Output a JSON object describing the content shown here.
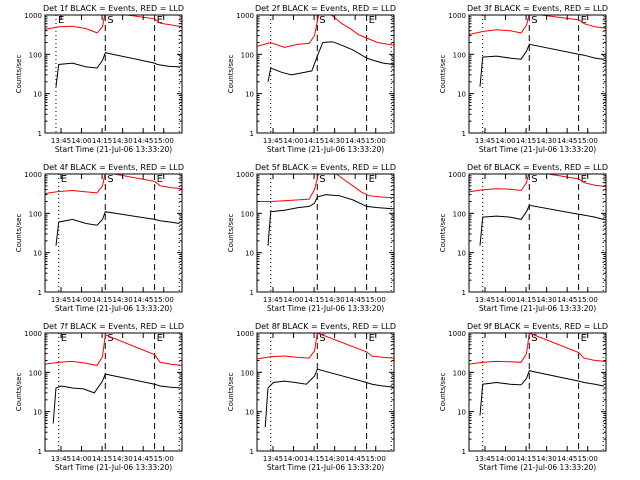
{
  "figure": {
    "ylabel": "Counts/sec",
    "xlabel": "Start Time (21-Jul-06 13:33:20)",
    "yticks": [
      "1",
      "10",
      "100",
      "1000"
    ],
    "xticks": [
      "13:45",
      "14:00",
      "14:15",
      "14:30",
      "14:45",
      "15:00"
    ],
    "colors": {
      "events": "#000000",
      "lld": "#ff0000",
      "axes": "#000000"
    }
  },
  "chart_data": [
    {
      "type": "line",
      "title": "Det 1f BLACK = Events, RED = LLD",
      "xlabel": "Start Time (21-Jul-06 13:33:20)",
      "ylabel": "Counts/sec",
      "ylim": [
        1,
        1000
      ],
      "yscale": "log",
      "x_unit": "minutes after 13:33:20",
      "markers": [
        {
          "label": "E",
          "style": "dotted",
          "x": 8
        },
        {
          "label": "S",
          "style": "dashed",
          "x": 44
        },
        {
          "label": "E",
          "style": "dashed",
          "x": 80
        },
        {
          "style": "dotted",
          "x": 98
        }
      ],
      "series": [
        {
          "name": "Events",
          "color": "#000000",
          "x": [
            8,
            10,
            20,
            30,
            38,
            42,
            44,
            80,
            82,
            90,
            98
          ],
          "y": [
            15,
            55,
            60,
            48,
            45,
            70,
            110,
            60,
            55,
            50,
            48
          ]
        },
        {
          "name": "LLD",
          "color": "#ff0000",
          "x": [
            0,
            10,
            20,
            30,
            38,
            42,
            44,
            80,
            84,
            92,
            100
          ],
          "y": [
            430,
            500,
            520,
            450,
            350,
            500,
            1200,
            800,
            620,
            560,
            500
          ]
        }
      ]
    },
    {
      "type": "line",
      "title": "Det 2f BLACK = Events, RED = LLD",
      "xlabel": "Start Time (21-Jul-06 13:33:20)",
      "ylabel": "Counts/sec",
      "ylim": [
        1,
        1000
      ],
      "yscale": "log",
      "x_unit": "minutes after 13:33:20",
      "markers": [
        {
          "style": "dotted",
          "x": 10
        },
        {
          "label": "S",
          "style": "dashed",
          "x": 44
        },
        {
          "label": "E",
          "style": "dashed",
          "x": 80
        },
        {
          "style": "dotted",
          "x": 98
        }
      ],
      "series": [
        {
          "name": "Events",
          "color": "#000000",
          "x": [
            8,
            10,
            18,
            25,
            35,
            40,
            44,
            48,
            55,
            62,
            70,
            80,
            85,
            92,
            100
          ],
          "y": [
            20,
            45,
            35,
            30,
            35,
            38,
            90,
            200,
            210,
            170,
            130,
            80,
            70,
            60,
            55
          ]
        },
        {
          "name": "LLD",
          "color": "#ff0000",
          "x": [
            0,
            10,
            20,
            30,
            38,
            42,
            46,
            50,
            56,
            62,
            68,
            74,
            80,
            88,
            100
          ],
          "y": [
            160,
            200,
            150,
            180,
            190,
            300,
            1500,
            1300,
            900,
            600,
            450,
            320,
            260,
            200,
            170
          ]
        }
      ]
    },
    {
      "type": "line",
      "title": "Det 3f BLACK = Events, RED = LLD",
      "xlabel": "Start Time (21-Jul-06 13:33:20)",
      "ylabel": "Counts/sec",
      "ylim": [
        1,
        1000
      ],
      "yscale": "log",
      "x_unit": "minutes after 13:33:20",
      "markers": [
        {
          "style": "dotted",
          "x": 10
        },
        {
          "label": "S",
          "style": "dashed",
          "x": 44
        },
        {
          "label": "E",
          "style": "dashed",
          "x": 80
        },
        {
          "style": "dotted",
          "x": 98
        }
      ],
      "series": [
        {
          "name": "Events",
          "color": "#000000",
          "x": [
            8,
            10,
            20,
            30,
            38,
            42,
            44,
            80,
            84,
            92,
            98
          ],
          "y": [
            15,
            85,
            90,
            80,
            75,
            120,
            180,
            100,
            95,
            80,
            75
          ]
        },
        {
          "name": "LLD",
          "color": "#ff0000",
          "x": [
            0,
            10,
            20,
            30,
            38,
            42,
            44,
            80,
            84,
            92,
            100
          ],
          "y": [
            320,
            380,
            420,
            400,
            350,
            550,
            1100,
            750,
            600,
            500,
            460
          ]
        }
      ]
    },
    {
      "type": "line",
      "title": "Det 4f BLACK = Events, RED = LLD",
      "xlabel": "Start Time (21-Jul-06 13:33:20)",
      "ylabel": "Counts/sec",
      "ylim": [
        1,
        1000
      ],
      "yscale": "log",
      "x_unit": "minutes after 13:33:20",
      "markers": [
        {
          "label": "E",
          "style": "dotted",
          "x": 10
        },
        {
          "label": "S",
          "style": "dashed",
          "x": 44
        },
        {
          "label": "E",
          "style": "dashed",
          "x": 80
        },
        {
          "style": "dotted",
          "x": 98
        }
      ],
      "series": [
        {
          "name": "Events",
          "color": "#000000",
          "x": [
            8,
            10,
            20,
            30,
            38,
            42,
            44,
            80,
            84,
            92,
            98
          ],
          "y": [
            15,
            60,
            70,
            55,
            50,
            70,
            110,
            70,
            65,
            60,
            55
          ]
        },
        {
          "name": "LLD",
          "color": "#ff0000",
          "x": [
            0,
            10,
            20,
            30,
            38,
            42,
            44,
            80,
            84,
            92,
            100
          ],
          "y": [
            320,
            360,
            380,
            350,
            330,
            500,
            1100,
            650,
            500,
            450,
            420
          ]
        }
      ]
    },
    {
      "type": "line",
      "title": "Det 5f BLACK = Events, RED = LLD",
      "xlabel": "Start Time (21-Jul-06 13:33:20)",
      "ylabel": "Counts/sec",
      "ylim": [
        1,
        1000
      ],
      "yscale": "log",
      "x_unit": "minutes after 13:33:20",
      "markers": [
        {
          "style": "dotted",
          "x": 10
        },
        {
          "label": "S",
          "style": "dashed",
          "x": 44
        },
        {
          "label": "E",
          "style": "dashed",
          "x": 80
        },
        {
          "style": "dotted",
          "x": 98
        }
      ],
      "series": [
        {
          "name": "Events",
          "color": "#000000",
          "x": [
            8,
            10,
            20,
            30,
            38,
            42,
            44,
            50,
            60,
            70,
            80,
            88,
            100
          ],
          "y": [
            15,
            110,
            120,
            140,
            150,
            180,
            260,
            300,
            280,
            220,
            150,
            140,
            130
          ]
        },
        {
          "name": "LLD",
          "color": "#ff0000",
          "x": [
            0,
            10,
            20,
            30,
            38,
            42,
            46,
            52,
            58,
            64,
            70,
            76,
            82,
            90,
            100
          ],
          "y": [
            200,
            200,
            210,
            220,
            230,
            400,
            1500,
            1300,
            1000,
            700,
            500,
            350,
            280,
            260,
            250
          ]
        }
      ]
    },
    {
      "type": "line",
      "title": "Det 6f BLACK = Events, RED = LLD",
      "xlabel": "Start Time (21-Jul-06 13:33:20)",
      "ylabel": "Counts/sec",
      "ylim": [
        1,
        1000
      ],
      "yscale": "log",
      "x_unit": "minutes after 13:33:20",
      "markers": [
        {
          "style": "dotted",
          "x": 10
        },
        {
          "label": "S",
          "style": "dashed",
          "x": 44
        },
        {
          "label": "E",
          "style": "dashed",
          "x": 80
        },
        {
          "style": "dotted",
          "x": 98
        }
      ],
      "series": [
        {
          "name": "Events",
          "color": "#000000",
          "x": [
            8,
            10,
            20,
            30,
            38,
            42,
            44,
            80,
            84,
            92,
            98
          ],
          "y": [
            15,
            80,
            85,
            80,
            70,
            110,
            160,
            95,
            90,
            80,
            70
          ]
        },
        {
          "name": "LLD",
          "color": "#ff0000",
          "x": [
            0,
            10,
            20,
            30,
            38,
            42,
            44,
            80,
            84,
            92,
            100
          ],
          "y": [
            350,
            400,
            420,
            410,
            380,
            600,
            1200,
            750,
            600,
            520,
            480
          ]
        }
      ]
    },
    {
      "type": "line",
      "title": "Det 7f BLACK = Events, RED = LLD",
      "xlabel": "Start Time (21-Jul-06 13:33:20)",
      "ylabel": "Counts/sec",
      "ylim": [
        1,
        1000
      ],
      "yscale": "log",
      "x_unit": "minutes after 13:33:20",
      "markers": [
        {
          "label": "E",
          "style": "dotted",
          "x": 10
        },
        {
          "label": "S",
          "style": "dashed",
          "x": 44
        },
        {
          "label": "E",
          "style": "dashed",
          "x": 80
        },
        {
          "style": "dotted",
          "x": 98
        }
      ],
      "series": [
        {
          "name": "Events",
          "color": "#000000",
          "x": [
            6,
            8,
            12,
            20,
            28,
            36,
            42,
            44,
            80,
            84,
            92,
            100
          ],
          "y": [
            5,
            40,
            45,
            40,
            38,
            30,
            60,
            90,
            50,
            45,
            42,
            40
          ]
        },
        {
          "name": "LLD",
          "color": "#ff0000",
          "x": [
            0,
            10,
            20,
            30,
            38,
            42,
            44,
            80,
            84,
            92,
            100
          ],
          "y": [
            160,
            180,
            190,
            170,
            150,
            250,
            900,
            280,
            180,
            160,
            150
          ]
        }
      ]
    },
    {
      "type": "line",
      "title": "Det 8f BLACK = Events, RED = LLD",
      "xlabel": "Start Time (21-Jul-06 13:33:20)",
      "ylabel": "Counts/sec",
      "ylim": [
        1,
        1000
      ],
      "yscale": "log",
      "x_unit": "minutes after 13:33:20",
      "markers": [
        {
          "style": "dotted",
          "x": 10
        },
        {
          "label": "S",
          "style": "dashed",
          "x": 44
        },
        {
          "label": "E",
          "style": "dashed",
          "x": 80
        },
        {
          "style": "dotted",
          "x": 98
        }
      ],
      "series": [
        {
          "name": "Events",
          "color": "#000000",
          "x": [
            6,
            8,
            12,
            20,
            28,
            36,
            42,
            44,
            80,
            84,
            92,
            100
          ],
          "y": [
            4,
            40,
            55,
            60,
            55,
            50,
            80,
            120,
            55,
            50,
            45,
            42
          ]
        },
        {
          "name": "LLD",
          "color": "#ff0000",
          "x": [
            0,
            10,
            20,
            30,
            38,
            42,
            44,
            80,
            84,
            92,
            100
          ],
          "y": [
            220,
            250,
            260,
            240,
            230,
            350,
            1000,
            330,
            260,
            240,
            230
          ]
        }
      ]
    },
    {
      "type": "line",
      "title": "Det 9f BLACK = Events, RED = LLD",
      "xlabel": "Start Time (21-Jul-06 13:33:20)",
      "ylabel": "Counts/sec",
      "ylim": [
        1,
        1000
      ],
      "yscale": "log",
      "x_unit": "minutes after 13:33:20",
      "markers": [
        {
          "style": "dotted",
          "x": 10
        },
        {
          "label": "S",
          "style": "dashed",
          "x": 44
        },
        {
          "label": "E",
          "style": "dashed",
          "x": 80
        },
        {
          "style": "dotted",
          "x": 98
        }
      ],
      "series": [
        {
          "name": "Events",
          "color": "#000000",
          "x": [
            8,
            10,
            20,
            30,
            38,
            42,
            44,
            80,
            84,
            92,
            98
          ],
          "y": [
            8,
            50,
            55,
            50,
            48,
            70,
            110,
            60,
            55,
            50,
            45
          ]
        },
        {
          "name": "LLD",
          "color": "#ff0000",
          "x": [
            0,
            10,
            20,
            30,
            38,
            42,
            44,
            80,
            84,
            92,
            100
          ],
          "y": [
            160,
            180,
            190,
            185,
            180,
            300,
            1000,
            320,
            230,
            200,
            190
          ]
        }
      ]
    }
  ]
}
